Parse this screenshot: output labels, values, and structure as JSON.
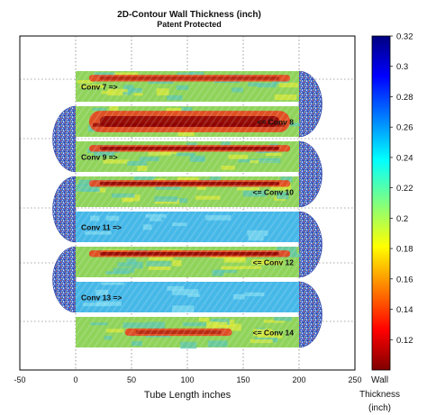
{
  "chart_data": {
    "type": "heatmap",
    "title": "2D-Contour Wall Thickness (inch)",
    "subtitle": "Patent Protected",
    "xlabel": "Tube Length inches",
    "xlim": [
      -50,
      250
    ],
    "x_ticks": [
      "-50",
      "0",
      "50",
      "100",
      "150",
      "200",
      "250"
    ],
    "grid": true,
    "colorbar": {
      "label": "Wall Thickness (inch)",
      "label_lines": [
        "Wall",
        "Thickness",
        "(inch)"
      ],
      "range": [
        0.1,
        0.32
      ],
      "ticks": [
        "0.32",
        "0.3",
        "0.28",
        "0.26",
        "0.24",
        "0.22",
        "0.2",
        "0.18",
        "0.16",
        "0.14",
        "0.12"
      ],
      "colormap": "jet_reversed"
    },
    "series": [
      {
        "name": "Conv 7 =>",
        "label_side": "left",
        "x_range": [
          0,
          200
        ],
        "wall_level": "medium",
        "thin_band": "upper"
      },
      {
        "name": "<= Conv 8",
        "label_side": "right",
        "x_range": [
          0,
          200
        ],
        "wall_level": "thin",
        "thin_band": "full"
      },
      {
        "name": "Conv 9 =>",
        "label_side": "left",
        "x_range": [
          0,
          200
        ],
        "wall_level": "thin",
        "thin_band": "upper"
      },
      {
        "name": "<= Conv 10",
        "label_side": "right",
        "x_range": [
          0,
          200
        ],
        "wall_level": "thin",
        "thin_band": "upper"
      },
      {
        "name": "Conv 11 =>",
        "label_side": "left",
        "x_range": [
          0,
          200
        ],
        "wall_level": "nominal",
        "thin_band": "none"
      },
      {
        "name": "<= Conv 12",
        "label_side": "right",
        "x_range": [
          0,
          200
        ],
        "wall_level": "thin",
        "thin_band": "upper"
      },
      {
        "name": "Conv 13 =>",
        "label_side": "left",
        "x_range": [
          0,
          200
        ],
        "wall_level": "nominal",
        "thin_band": "none"
      },
      {
        "name": "<= Conv 14",
        "label_side": "right",
        "x_range": [
          0,
          200
        ],
        "wall_level": "medium",
        "thin_band": "middle"
      }
    ],
    "bends": [
      {
        "side": "right",
        "between": [
          "Conv 7 =>",
          "<= Conv 8"
        ]
      },
      {
        "side": "left",
        "between": [
          "<= Conv 8",
          "Conv 9 =>"
        ]
      },
      {
        "side": "right",
        "between": [
          "Conv 9 =>",
          "<= Conv 10"
        ]
      },
      {
        "side": "left",
        "between": [
          "<= Conv 10",
          "Conv 11 =>"
        ]
      },
      {
        "side": "right",
        "between": [
          "Conv 11 =>",
          "<= Conv 12"
        ]
      },
      {
        "side": "left",
        "between": [
          "<= Conv 12",
          "Conv 13 =>"
        ]
      },
      {
        "side": "right",
        "between": [
          "Conv 13 =>",
          "<= Conv 14"
        ]
      }
    ],
    "colors": {
      "nominal": "#45b8e8",
      "medium": "#8fd35a",
      "thin": "#e8401c",
      "very_thin": "#8a0000",
      "bend_speckle": "#3b4fb5"
    }
  }
}
